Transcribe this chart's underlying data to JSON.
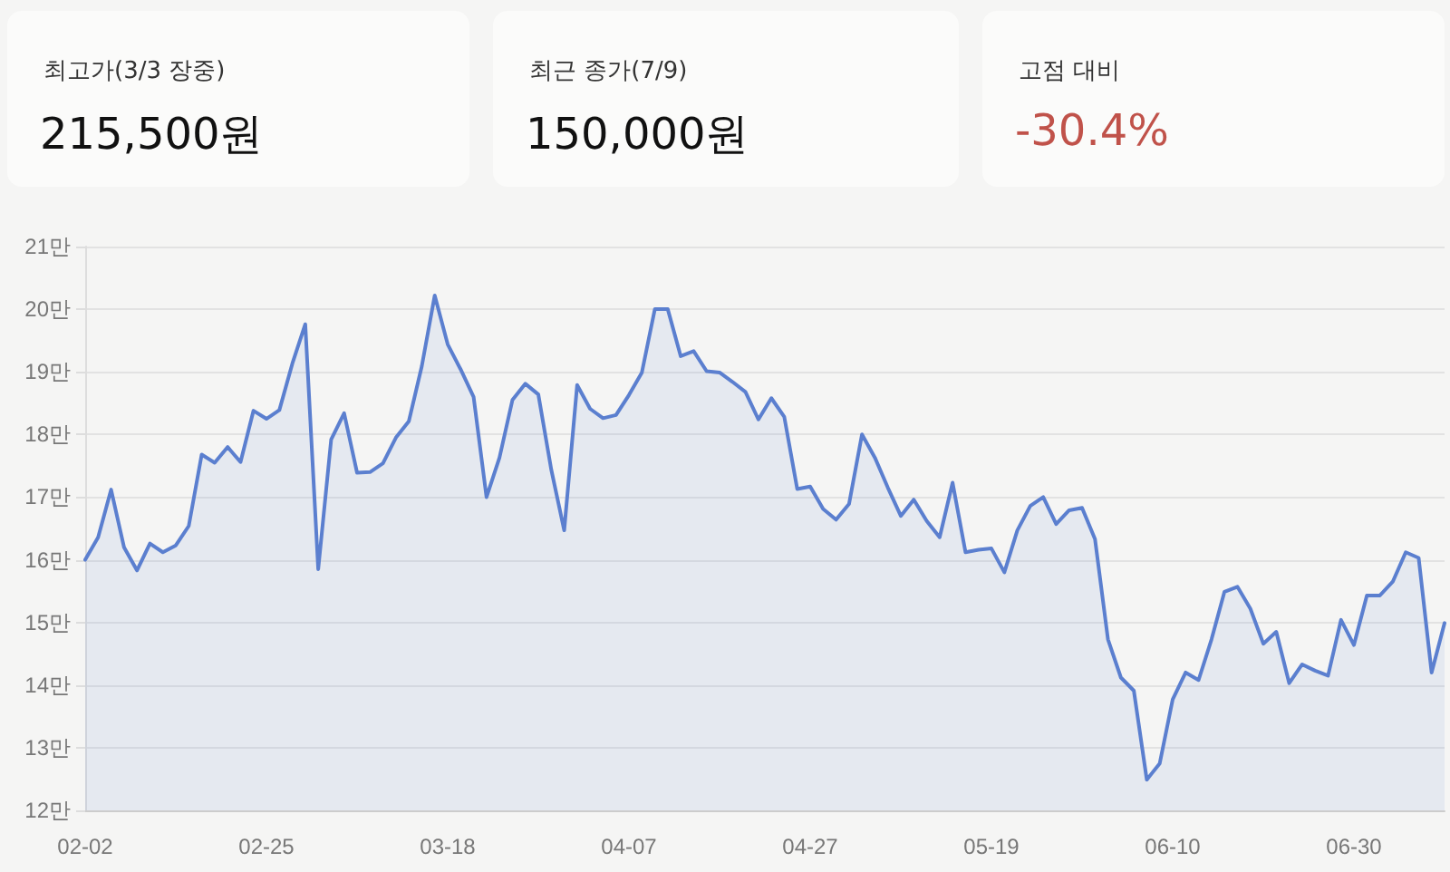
{
  "chart_data": [
    {
      "type": "other",
      "annotations": [
        "최고가(3/3 장중)",
        "215,500원",
        "최근 종가(7/9)",
        "150,000원",
        "고점 대비",
        "-30.4%"
      ]
    },
    {
      "type": "area",
      "color": "#5b7fcf",
      "grid": "y",
      "marker": "none",
      "line_style": "solid",
      "categories": [
        "02-02",
        null,
        null,
        null,
        null,
        null,
        null,
        null,
        null,
        null,
        null,
        null,
        null,
        null,
        "02-25",
        null,
        null,
        null,
        null,
        null,
        null,
        null,
        null,
        null,
        null,
        null,
        null,
        null,
        "03-18",
        null,
        null,
        null,
        null,
        null,
        null,
        null,
        null,
        null,
        null,
        null,
        null,
        null,
        "04-07",
        null,
        null,
        null,
        null,
        null,
        null,
        null,
        null,
        null,
        null,
        null,
        null,
        null,
        "04-27",
        null,
        null,
        null,
        null,
        null,
        null,
        null,
        null,
        null,
        null,
        null,
        null,
        null,
        "05-19",
        null,
        null,
        null,
        null,
        null,
        null,
        null,
        null,
        null,
        null,
        null,
        null,
        null,
        "06-10",
        null,
        null,
        null,
        null,
        null,
        null,
        null,
        null,
        null,
        null,
        null,
        null,
        null,
        "06-30",
        null,
        null,
        null,
        null,
        null,
        null,
        null
      ],
      "values": [
        16.0,
        16.36,
        17.12,
        16.2,
        15.83,
        16.26,
        16.12,
        16.23,
        16.54,
        17.68,
        17.55,
        17.8,
        17.56,
        18.38,
        18.25,
        18.39,
        19.13,
        19.76,
        15.85,
        17.92,
        18.34,
        17.39,
        17.4,
        17.54,
        17.95,
        18.21,
        19.09,
        20.22,
        19.44,
        19.04,
        18.6,
        17.0,
        17.63,
        18.55,
        18.81,
        18.64,
        17.44,
        16.47,
        18.79,
        18.41,
        18.26,
        18.31,
        18.63,
        18.99,
        20.0,
        20.0,
        19.25,
        19.33,
        19.01,
        18.99,
        18.84,
        18.68,
        18.24,
        18.58,
        18.28,
        17.13,
        17.17,
        16.81,
        16.64,
        16.89,
        18.0,
        17.63,
        17.15,
        16.7,
        16.96,
        16.62,
        16.36,
        17.23,
        16.12,
        16.16,
        16.18,
        15.8,
        16.47,
        16.86,
        17.0,
        16.57,
        16.79,
        16.83,
        16.33,
        14.73,
        14.12,
        13.91,
        12.49,
        12.75,
        13.77,
        14.2,
        14.08,
        14.73,
        15.49,
        15.57,
        15.22,
        14.66,
        14.85,
        14.03,
        14.33,
        14.23,
        14.15,
        15.04,
        14.64,
        15.43,
        15.43,
        15.65,
        16.12,
        16.03,
        14.2,
        14.99
      ],
      "ylim": [
        12,
        21
      ],
      "yticks": [
        {
          "value": 12,
          "label": "12만"
        },
        {
          "value": 13,
          "label": "13만"
        },
        {
          "value": 14,
          "label": "14만"
        },
        {
          "value": 15,
          "label": "15만"
        },
        {
          "value": 16,
          "label": "16만"
        },
        {
          "value": 17,
          "label": "17만"
        },
        {
          "value": 18,
          "label": "18만"
        },
        {
          "value": 19,
          "label": "19만"
        },
        {
          "value": 20,
          "label": "20만"
        },
        {
          "value": 21,
          "label": "21만"
        }
      ]
    }
  ]
}
